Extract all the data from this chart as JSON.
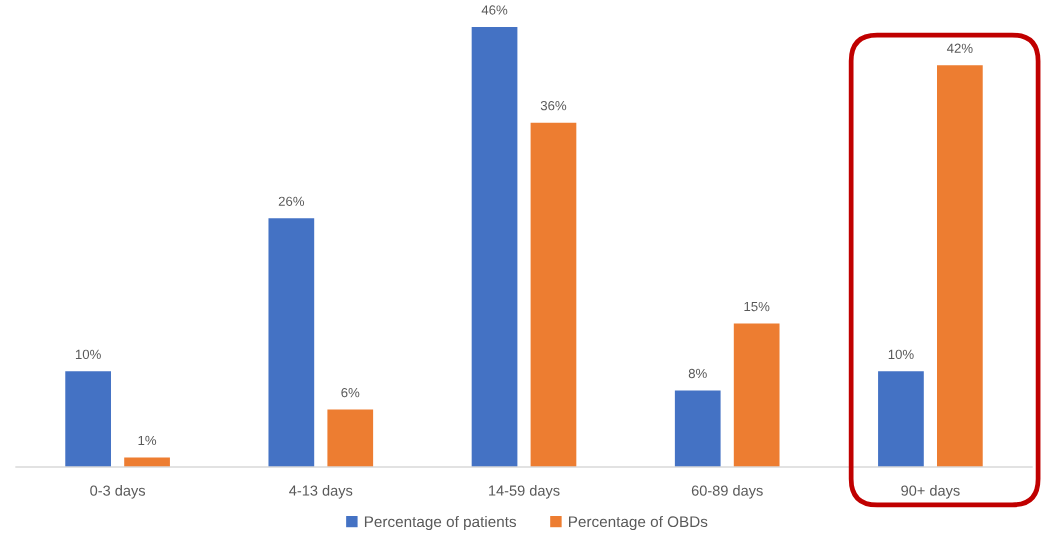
{
  "chart_data": {
    "type": "bar",
    "categories": [
      "0-3 days",
      "4-13 days",
      "14-59 days",
      "60-89 days",
      "90+ days"
    ],
    "series": [
      {
        "name": "Percentage of patients",
        "color": "#4472c4",
        "values": [
          10,
          26,
          46,
          8,
          10
        ],
        "value_labels": [
          "10%",
          "26%",
          "46%",
          "8%",
          "10%"
        ]
      },
      {
        "name": "Percentage of OBDs",
        "color": "#ed7d31",
        "values": [
          1,
          6,
          36,
          15,
          42
        ],
        "value_labels": [
          "1%",
          "6%",
          "36%",
          "15%",
          "42%"
        ]
      }
    ],
    "tick_labels": "x",
    "legend": "bottom"
  }
}
